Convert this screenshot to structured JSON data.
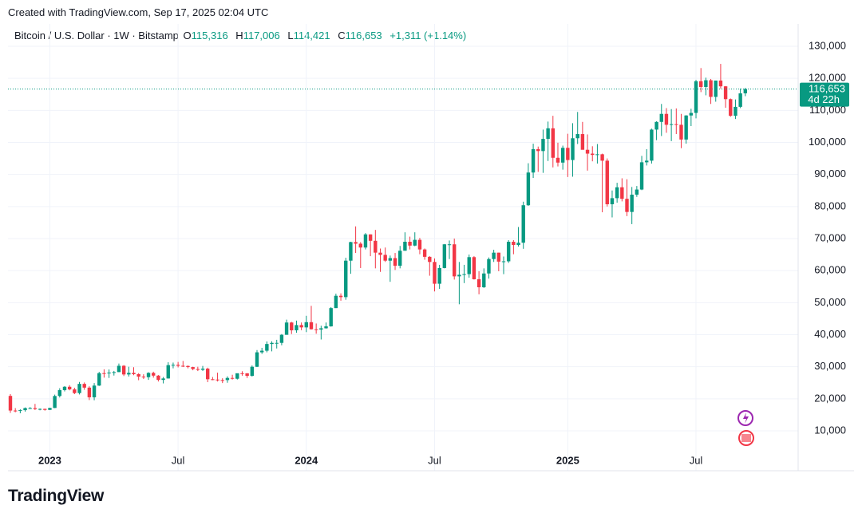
{
  "header": {
    "created": "Created with TradingView.com, Sep 17, 2025 02:04 UTC"
  },
  "chart_data": {
    "type": "candlestick",
    "symbol": "Bitcoin / U.S. Dollar · 1W · Bitstamp",
    "legend": {
      "open_key": "O",
      "open": "115,316",
      "high_key": "H",
      "high": "117,006",
      "low_key": "L",
      "low": "114,421",
      "close_key": "C",
      "close": "116,653",
      "change": "+1,311 (+1.14%)"
    },
    "last_price_label": "116,653",
    "countdown": "4d 22h",
    "up_color": "#089981",
    "down_color": "#f23645",
    "grid": true,
    "ylim": [
      -2450,
      133980
    ],
    "yticks": [
      {
        "value": 10000,
        "label": "10,000"
      },
      {
        "value": 20000,
        "label": "20,000"
      },
      {
        "value": 30000,
        "label": "30,000"
      },
      {
        "value": 40000,
        "label": "40,000"
      },
      {
        "value": 50000,
        "label": "50,000"
      },
      {
        "value": 60000,
        "label": "60,000"
      },
      {
        "value": 70000,
        "label": "70,000"
      },
      {
        "value": 80000,
        "label": "80,000"
      },
      {
        "value": 90000,
        "label": "90,000"
      },
      {
        "value": 100000,
        "label": "100,000"
      },
      {
        "value": 110000,
        "label": "110,000"
      },
      {
        "value": 120000,
        "label": "120,000"
      },
      {
        "value": 130000,
        "label": "130,000"
      }
    ],
    "categories": [
      null,
      null,
      null,
      null,
      null,
      null,
      null,
      null,
      "2023",
      null,
      null,
      null,
      null,
      null,
      null,
      null,
      null,
      null,
      null,
      null,
      null,
      null,
      null,
      null,
      null,
      null,
      null,
      null,
      null,
      null,
      null,
      null,
      null,
      null,
      "Jul",
      null,
      null,
      null,
      null,
      null,
      null,
      null,
      null,
      null,
      null,
      null,
      null,
      null,
      null,
      null,
      null,
      null,
      null,
      null,
      null,
      null,
      null,
      null,
      null,
      null,
      "2024",
      null,
      null,
      null,
      null,
      null,
      null,
      null,
      null,
      null,
      null,
      null,
      null,
      null,
      null,
      null,
      null,
      null,
      null,
      null,
      null,
      null,
      null,
      null,
      null,
      null,
      "Jul",
      null,
      null,
      null,
      null,
      null,
      null,
      null,
      null,
      null,
      null,
      null,
      null,
      null,
      null,
      null,
      null,
      null,
      null,
      null,
      null,
      null,
      null,
      null,
      null,
      null,
      null,
      "2025",
      null,
      null,
      null,
      null,
      null,
      null,
      null,
      null,
      null,
      null,
      null,
      null,
      null,
      null,
      null,
      null,
      null,
      null,
      null,
      null,
      null,
      null,
      null,
      null,
      null,
      "Jul",
      null,
      null,
      null,
      null,
      null,
      null,
      null,
      null,
      null,
      null
    ],
    "candles": [
      [
        20900,
        21450,
        15600,
        16330
      ],
      [
        16330,
        17100,
        15800,
        16280
      ],
      [
        16280,
        16750,
        15480,
        16450
      ],
      [
        16450,
        17300,
        16000,
        17100
      ],
      [
        17100,
        17400,
        16800,
        17100
      ],
      [
        17100,
        18400,
        16500,
        16800
      ],
      [
        16800,
        17000,
        16400,
        16840
      ],
      [
        16840,
        16950,
        16300,
        16540
      ],
      [
        16540,
        17200,
        16500,
        17140
      ],
      [
        17140,
        21300,
        17100,
        20870
      ],
      [
        20870,
        23300,
        20400,
        22700
      ],
      [
        22700,
        23950,
        22300,
        23750
      ],
      [
        23750,
        24250,
        22650,
        22930
      ],
      [
        22930,
        23450,
        21450,
        21780
      ],
      [
        21780,
        25250,
        21350,
        24650
      ],
      [
        24650,
        25100,
        22800,
        23480
      ],
      [
        23480,
        23900,
        19600,
        20460
      ],
      [
        20460,
        24900,
        19550,
        24120
      ],
      [
        24120,
        28400,
        24000,
        28000
      ],
      [
        28000,
        29200,
        26600,
        27980
      ],
      [
        27980,
        29150,
        26500,
        28180
      ],
      [
        28180,
        28700,
        27250,
        28330
      ],
      [
        28330,
        31000,
        28300,
        30300
      ],
      [
        30300,
        30500,
        27100,
        27590
      ],
      [
        27590,
        30000,
        26950,
        28090
      ],
      [
        28090,
        29850,
        27350,
        27680
      ],
      [
        27680,
        28000,
        25800,
        26930
      ],
      [
        26930,
        27650,
        26200,
        26750
      ],
      [
        26750,
        28300,
        25900,
        28080
      ],
      [
        28080,
        28450,
        26600,
        27230
      ],
      [
        27230,
        27400,
        25400,
        25890
      ],
      [
        25890,
        26800,
        24800,
        26340
      ],
      [
        26340,
        31400,
        26300,
        30500
      ],
      [
        30500,
        31300,
        29500,
        30600
      ],
      [
        30600,
        31500,
        29800,
        30300
      ],
      [
        30300,
        31800,
        29900,
        30230
      ],
      [
        30230,
        30400,
        29500,
        29900
      ],
      [
        29900,
        30000,
        28900,
        29280
      ],
      [
        29280,
        30000,
        28650,
        29050
      ],
      [
        29050,
        30250,
        28700,
        29400
      ],
      [
        29400,
        29700,
        25200,
        26100
      ],
      [
        26100,
        26800,
        25800,
        26000
      ],
      [
        26000,
        28150,
        25400,
        25850
      ],
      [
        25850,
        26400,
        24900,
        25840
      ],
      [
        25840,
        27000,
        25000,
        26500
      ],
      [
        26500,
        27500,
        26000,
        26250
      ],
      [
        26250,
        27200,
        26000,
        27970
      ],
      [
        27970,
        28600,
        27200,
        27950
      ],
      [
        27950,
        28000,
        26500,
        27160
      ],
      [
        27160,
        30400,
        26950,
        29990
      ],
      [
        29990,
        35200,
        29900,
        34500
      ],
      [
        34500,
        35900,
        34000,
        35000
      ],
      [
        35000,
        37900,
        34500,
        37100
      ],
      [
        37100,
        37950,
        34800,
        37450
      ],
      [
        37450,
        38400,
        35700,
        37450
      ],
      [
        37450,
        40200,
        36700,
        39970
      ],
      [
        39970,
        44700,
        39970,
        43800
      ],
      [
        43800,
        44000,
        40200,
        41370
      ],
      [
        41370,
        44400,
        40600,
        43000
      ],
      [
        43000,
        43800,
        41400,
        42280
      ],
      [
        42280,
        45900,
        40800,
        43900
      ],
      [
        43900,
        49000,
        41600,
        41700
      ],
      [
        41700,
        43500,
        40300,
        41600
      ],
      [
        41600,
        42800,
        38500,
        42000
      ],
      [
        42000,
        43800,
        41900,
        42600
      ],
      [
        42600,
        48600,
        42500,
        48300
      ],
      [
        48300,
        52800,
        48300,
        52150
      ],
      [
        52150,
        52900,
        50600,
        51730
      ],
      [
        51730,
        64000,
        50900,
        63100
      ],
      [
        63100,
        69000,
        59000,
        68900
      ],
      [
        68900,
        73800,
        65500,
        68400
      ],
      [
        68400,
        68900,
        60800,
        67200
      ],
      [
        67200,
        71700,
        66600,
        71300
      ],
      [
        71300,
        71300,
        64500,
        69300
      ],
      [
        69300,
        72700,
        60700,
        65600
      ],
      [
        65600,
        66900,
        59600,
        64900
      ],
      [
        64900,
        67200,
        62700,
        63100
      ],
      [
        63100,
        64700,
        56500,
        63900
      ],
      [
        63900,
        65500,
        60200,
        61500
      ],
      [
        61500,
        67700,
        60700,
        66200
      ],
      [
        66200,
        71950,
        66200,
        69000
      ],
      [
        69000,
        70600,
        66600,
        67800
      ],
      [
        67800,
        71950,
        67600,
        69600
      ],
      [
        69600,
        70200,
        65100,
        66600
      ],
      [
        66600,
        66900,
        63400,
        64300
      ],
      [
        64300,
        64500,
        58400,
        62700
      ],
      [
        62700,
        63800,
        53500,
        55900
      ],
      [
        55900,
        61800,
        54300,
        60800
      ],
      [
        60800,
        68300,
        60700,
        68200
      ],
      [
        68200,
        69400,
        63600,
        68200
      ],
      [
        68200,
        70000,
        57200,
        58200
      ],
      [
        58200,
        62700,
        49500,
        58700
      ],
      [
        58700,
        61800,
        56100,
        58900
      ],
      [
        58900,
        65000,
        57800,
        64200
      ],
      [
        64200,
        64500,
        57200,
        57300
      ],
      [
        57300,
        59800,
        52600,
        54800
      ],
      [
        54800,
        60700,
        54600,
        59100
      ],
      [
        59100,
        64100,
        57500,
        63600
      ],
      [
        63600,
        66500,
        62700,
        65600
      ],
      [
        65600,
        65600,
        59800,
        62800
      ],
      [
        62800,
        64400,
        58900,
        62900
      ],
      [
        62900,
        69500,
        62400,
        69000
      ],
      [
        69000,
        69500,
        65100,
        68000
      ],
      [
        68000,
        73600,
        67500,
        68700
      ],
      [
        68700,
        81500,
        66800,
        80400
      ],
      [
        80400,
        93500,
        80200,
        90600
      ],
      [
        90600,
        99600,
        88900,
        97900
      ],
      [
        97900,
        98700,
        90800,
        97300
      ],
      [
        97300,
        104000,
        90500,
        101100
      ],
      [
        101100,
        106500,
        94200,
        104400
      ],
      [
        104400,
        108300,
        92200,
        95200
      ],
      [
        95200,
        99900,
        92500,
        93700
      ],
      [
        93700,
        99000,
        91500,
        98300
      ],
      [
        98300,
        102700,
        89200,
        94500
      ],
      [
        94500,
        106000,
        89300,
        101300
      ],
      [
        101300,
        109500,
        99500,
        102600
      ],
      [
        102600,
        106400,
        97800,
        97700
      ],
      [
        97700,
        102500,
        91200,
        96500
      ],
      [
        96500,
        98800,
        94100,
        96100
      ],
      [
        96100,
        99500,
        93400,
        96300
      ],
      [
        96300,
        96500,
        78200,
        94300
      ],
      [
        94300,
        95000,
        80000,
        80700
      ],
      [
        80700,
        85000,
        76600,
        82600
      ],
      [
        82600,
        87400,
        81200,
        86000
      ],
      [
        86000,
        88800,
        81600,
        82400
      ],
      [
        82400,
        88500,
        77000,
        78300
      ],
      [
        78300,
        86100,
        74500,
        83700
      ],
      [
        83700,
        86400,
        83000,
        85300
      ],
      [
        85300,
        95800,
        85100,
        93800
      ],
      [
        93800,
        97900,
        92800,
        94300
      ],
      [
        94300,
        104300,
        93400,
        104000
      ],
      [
        104000,
        106600,
        100700,
        106400
      ],
      [
        106400,
        112000,
        102000,
        108900
      ],
      [
        108900,
        110700,
        103000,
        105500
      ],
      [
        105500,
        110400,
        100400,
        105700
      ],
      [
        105700,
        110600,
        102600,
        105500
      ],
      [
        105500,
        108900,
        98200,
        100900
      ],
      [
        100900,
        108500,
        99600,
        108400
      ],
      [
        108400,
        110500,
        105100,
        109200
      ],
      [
        109200,
        119500,
        107500,
        119100
      ],
      [
        119100,
        123200,
        115700,
        117300
      ],
      [
        117300,
        120200,
        114700,
        119400
      ],
      [
        119400,
        119800,
        112000,
        114200
      ],
      [
        114200,
        119300,
        112700,
        119300
      ],
      [
        119300,
        124500,
        116800,
        117500
      ],
      [
        117500,
        117600,
        110800,
        113500
      ],
      [
        113500,
        113700,
        108000,
        108300
      ],
      [
        108300,
        113400,
        107300,
        111100
      ],
      [
        111100,
        116800,
        110700,
        115300
      ],
      [
        115316,
        117006,
        114421,
        116653
      ]
    ]
  },
  "footer": {
    "brand": "TradingView"
  }
}
